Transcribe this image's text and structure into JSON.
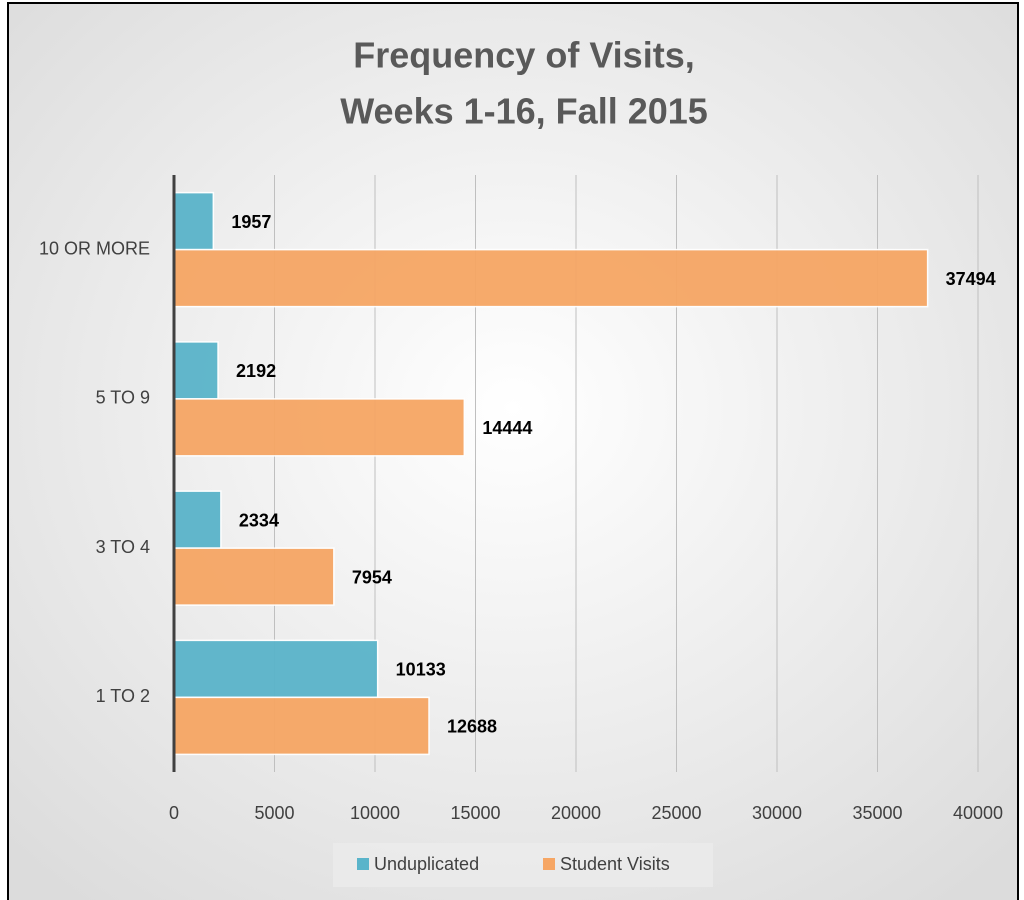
{
  "chart_data": {
    "type": "hbar",
    "title": [
      "Frequency of Visits,",
      "Weeks 1-16, Fall 2015"
    ],
    "categories": [
      "1 TO 2",
      "3 TO 4",
      "5 TO 9",
      "10 OR MORE"
    ],
    "series": [
      {
        "name": "Unduplicated",
        "color": "#5ab4ca",
        "values": [
          10133,
          2334,
          2192,
          1957
        ]
      },
      {
        "name": "Student Visits",
        "color": "#f6a664",
        "values": [
          12688,
          7954,
          14444,
          37494
        ]
      }
    ],
    "xlim": [
      0,
      40000
    ],
    "xticks": [
      0,
      5000,
      10000,
      15000,
      20000,
      25000,
      30000,
      35000,
      40000
    ],
    "grid": true,
    "legend": "bottom"
  }
}
